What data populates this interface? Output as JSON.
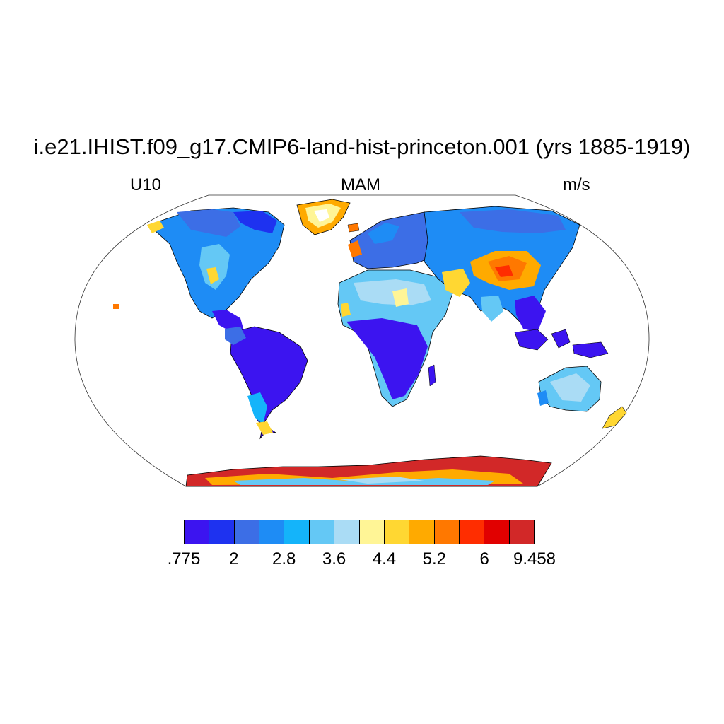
{
  "map": {
    "title": "i.e21.IHIST.f09_g17.CMIP6-land-hist-princeton.001 (yrs 1885-1919)",
    "variable": "U10",
    "season": "MAM",
    "units": "m/s",
    "projection": "Robinson",
    "colorbar": {
      "colors": [
        "#3c14f0",
        "#1e32f0",
        "#3c6ee6",
        "#1e8cf5",
        "#14b4fa",
        "#64c8f5",
        "#aadcf5",
        "#fff596",
        "#ffd732",
        "#ffaa00",
        "#ff7800",
        "#ff2d00",
        "#e10000",
        "#d22828"
      ],
      "labels": [
        ".775",
        "2",
        "2.8",
        "3.6",
        "4.4",
        "5.2",
        "6",
        "9.458"
      ]
    }
  }
}
